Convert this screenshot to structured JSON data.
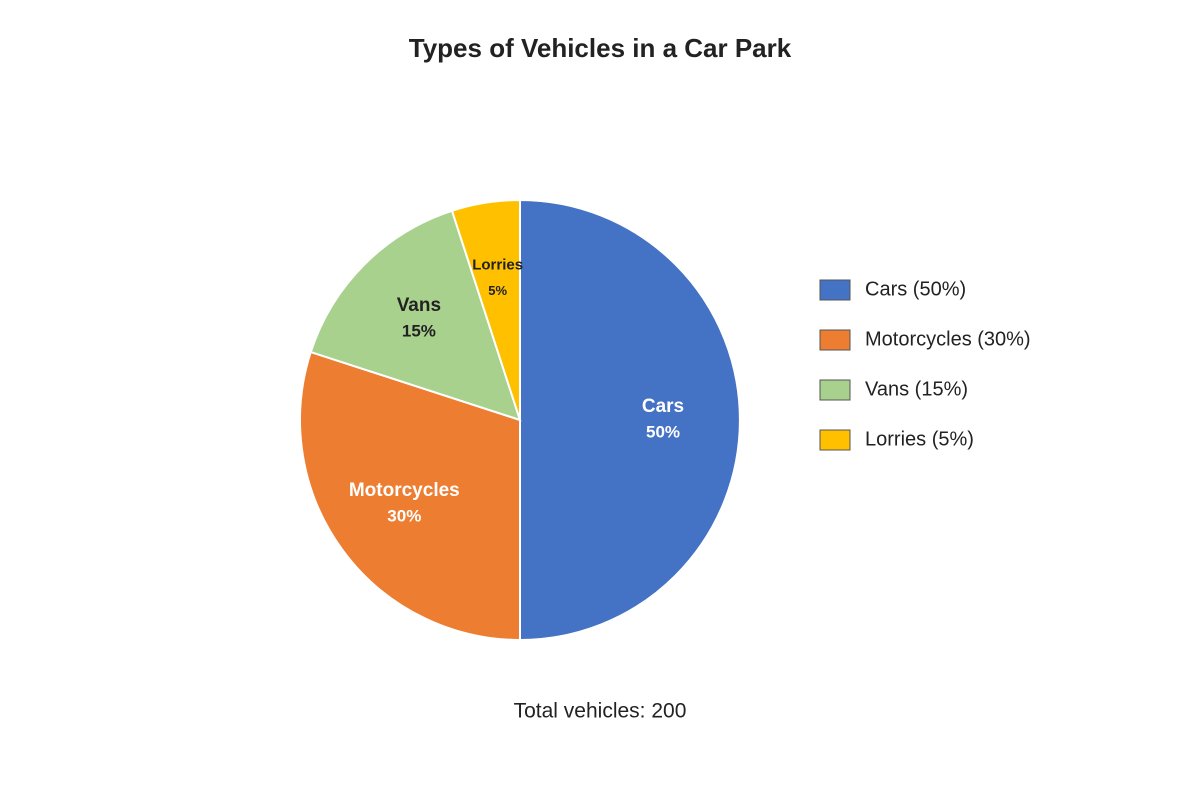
{
  "chart_data": {
    "type": "pie",
    "title": "Types of Vehicles in a Car Park",
    "categories": [
      "Cars",
      "Motorcycles",
      "Vans",
      "Lorries"
    ],
    "values": [
      50,
      30,
      15,
      5
    ],
    "value_labels": [
      "50%",
      "30%",
      "15%",
      "5%"
    ],
    "legend_labels": [
      "Cars (50%)",
      "Motorcycles (30%)",
      "Vans (15%)",
      "Lorries (5%)"
    ],
    "colors": [
      "#4472c4",
      "#ed7d31",
      "#a9d18e",
      "#ffc000"
    ],
    "annotation": "Total vehicles: 200"
  }
}
